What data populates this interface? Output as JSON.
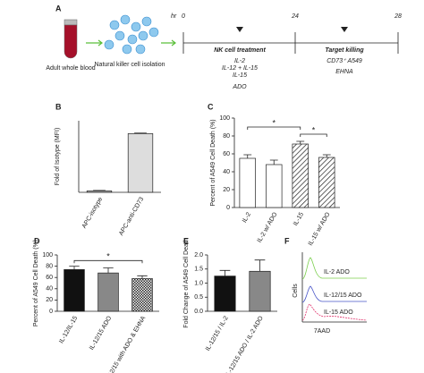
{
  "timeline": {
    "panel": "A",
    "blood_label": "Adult whole blood",
    "isolation_label": "Natural killer cell isolation",
    "unit": "hr",
    "times": [
      "0",
      "24",
      "28"
    ],
    "phase1": "NK cell treatment",
    "treatments": [
      "IL-2",
      "IL-12 + IL-15",
      "IL-15"
    ],
    "adenosine": "ADO",
    "phase2": "Target killing",
    "target": "CD73⁺ A549",
    "inhibitor": "EHNA"
  },
  "chart_data": [
    {
      "type": "bar",
      "panel": "B",
      "ylabel": "Fold of Isotype (MFI)",
      "categories": [
        "APC-isotype",
        "APC-anti-CD73"
      ],
      "values": [
        1,
        41
      ],
      "errors": [
        0.3,
        0.4
      ],
      "fills": [
        "#bbb",
        "#ddd"
      ],
      "ylim": [
        0,
        50
      ],
      "annotations": []
    },
    {
      "type": "bar",
      "panel": "C",
      "ylabel": "Percent of  A549  Cell Death (%)",
      "categories": [
        "IL-2",
        "IL-2 w/ ADO",
        "IL-15",
        "IL-15 w/ ADO"
      ],
      "values": [
        55,
        48,
        71,
        56
      ],
      "errors": [
        4,
        5,
        3,
        3
      ],
      "fills": [
        "white",
        "white",
        "hatch",
        "hatch"
      ],
      "ylim": [
        0,
        100
      ],
      "yticks": [
        0,
        20,
        40,
        60,
        80,
        100
      ],
      "annotations": [
        "*",
        "*"
      ]
    },
    {
      "type": "bar",
      "panel": "D",
      "ylabel": "Percent of  A549  Cell  Death (%)",
      "categories": [
        "IL-12/IL-15",
        "IL-12/15 ADO",
        "IL-12/15 with ADO & EHNA"
      ],
      "values": [
        74,
        68,
        58
      ],
      "errors": [
        6,
        9,
        5
      ],
      "fills": [
        "#111",
        "#888",
        "check"
      ],
      "ylim": [
        0,
        100
      ],
      "yticks": [
        0,
        20,
        40,
        60,
        80,
        100
      ],
      "annotations": [
        "*"
      ]
    },
    {
      "type": "bar",
      "panel": "E",
      "ylabel": "Fold Change of A549 Cell Death",
      "categories": [
        "IL-12/15 / IL-2",
        "IL-12/15 ADO / IL-2 ADO"
      ],
      "values": [
        1.25,
        1.42
      ],
      "errors": [
        0.2,
        0.4
      ],
      "fills": [
        "#111",
        "#888"
      ],
      "ylim": [
        0,
        2
      ],
      "yticks": [
        {
          "value": 0,
          "label": "0.0"
        },
        {
          "value": 0.5,
          "label": "0.5"
        },
        {
          "value": 1,
          "label": "1.0"
        },
        {
          "value": 1.5,
          "label": "1.5"
        },
        {
          "value": 2,
          "label": "2.0"
        }
      ],
      "annotations": []
    }
  ],
  "flow": {
    "panel": "F",
    "ylabel": "Cells",
    "xlabel": "7AAD",
    "labels": [
      "IL-2 ADO",
      "IL-12/15 ADO",
      "IL-15 ADO"
    ]
  }
}
